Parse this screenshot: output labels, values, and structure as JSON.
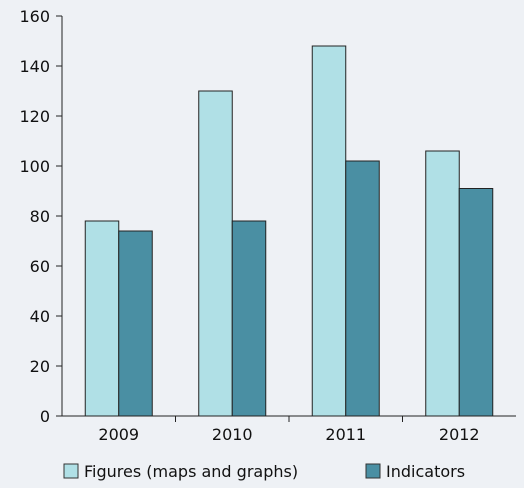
{
  "chart_data": {
    "type": "bar",
    "categories": [
      "2009",
      "2010",
      "2011",
      "2012"
    ],
    "series": [
      {
        "name": "Figures (maps and graphs)",
        "values": [
          78,
          130,
          148,
          106
        ],
        "color": "#b0e0e6"
      },
      {
        "name": "Indicators",
        "values": [
          74,
          78,
          102,
          91
        ],
        "color": "#4a8fa3"
      }
    ],
    "ylim": [
      0,
      160
    ],
    "yticks": [
      0,
      20,
      40,
      60,
      80,
      100,
      120,
      140,
      160
    ],
    "grid": false,
    "legend": "bottom",
    "title": "",
    "xlabel": "",
    "ylabel": ""
  }
}
